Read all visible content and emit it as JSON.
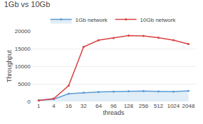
{
  "chart_data": {
    "type": "line",
    "title": "1Gb vs 10Gb",
    "x_label": "threads",
    "y_label": "Throughput",
    "categories": [
      "1",
      "4",
      "16",
      "32",
      "64",
      "96",
      "128",
      "256",
      "512",
      "1024",
      "2048"
    ],
    "series": [
      {
        "name": "1Gb network",
        "color": "#5b9bd5",
        "type": "area",
        "marker": "circle",
        "line_style": "solid",
        "values": [
          280,
          650,
          2200,
          2500,
          2700,
          2800,
          2900,
          2950,
          2850,
          2800,
          3000
        ]
      },
      {
        "name": "10Gb network",
        "color": "#d94040",
        "type": "line",
        "marker": "circle",
        "line_style": "solid",
        "values": [
          320,
          800,
          4500,
          15500,
          17400,
          18000,
          18700,
          18600,
          18100,
          17400,
          16300
        ]
      }
    ],
    "ylim": [
      0,
      20000
    ],
    "yticks": [
      0,
      5000,
      10000,
      15000,
      20000
    ],
    "grid": true,
    "legend": "top"
  }
}
